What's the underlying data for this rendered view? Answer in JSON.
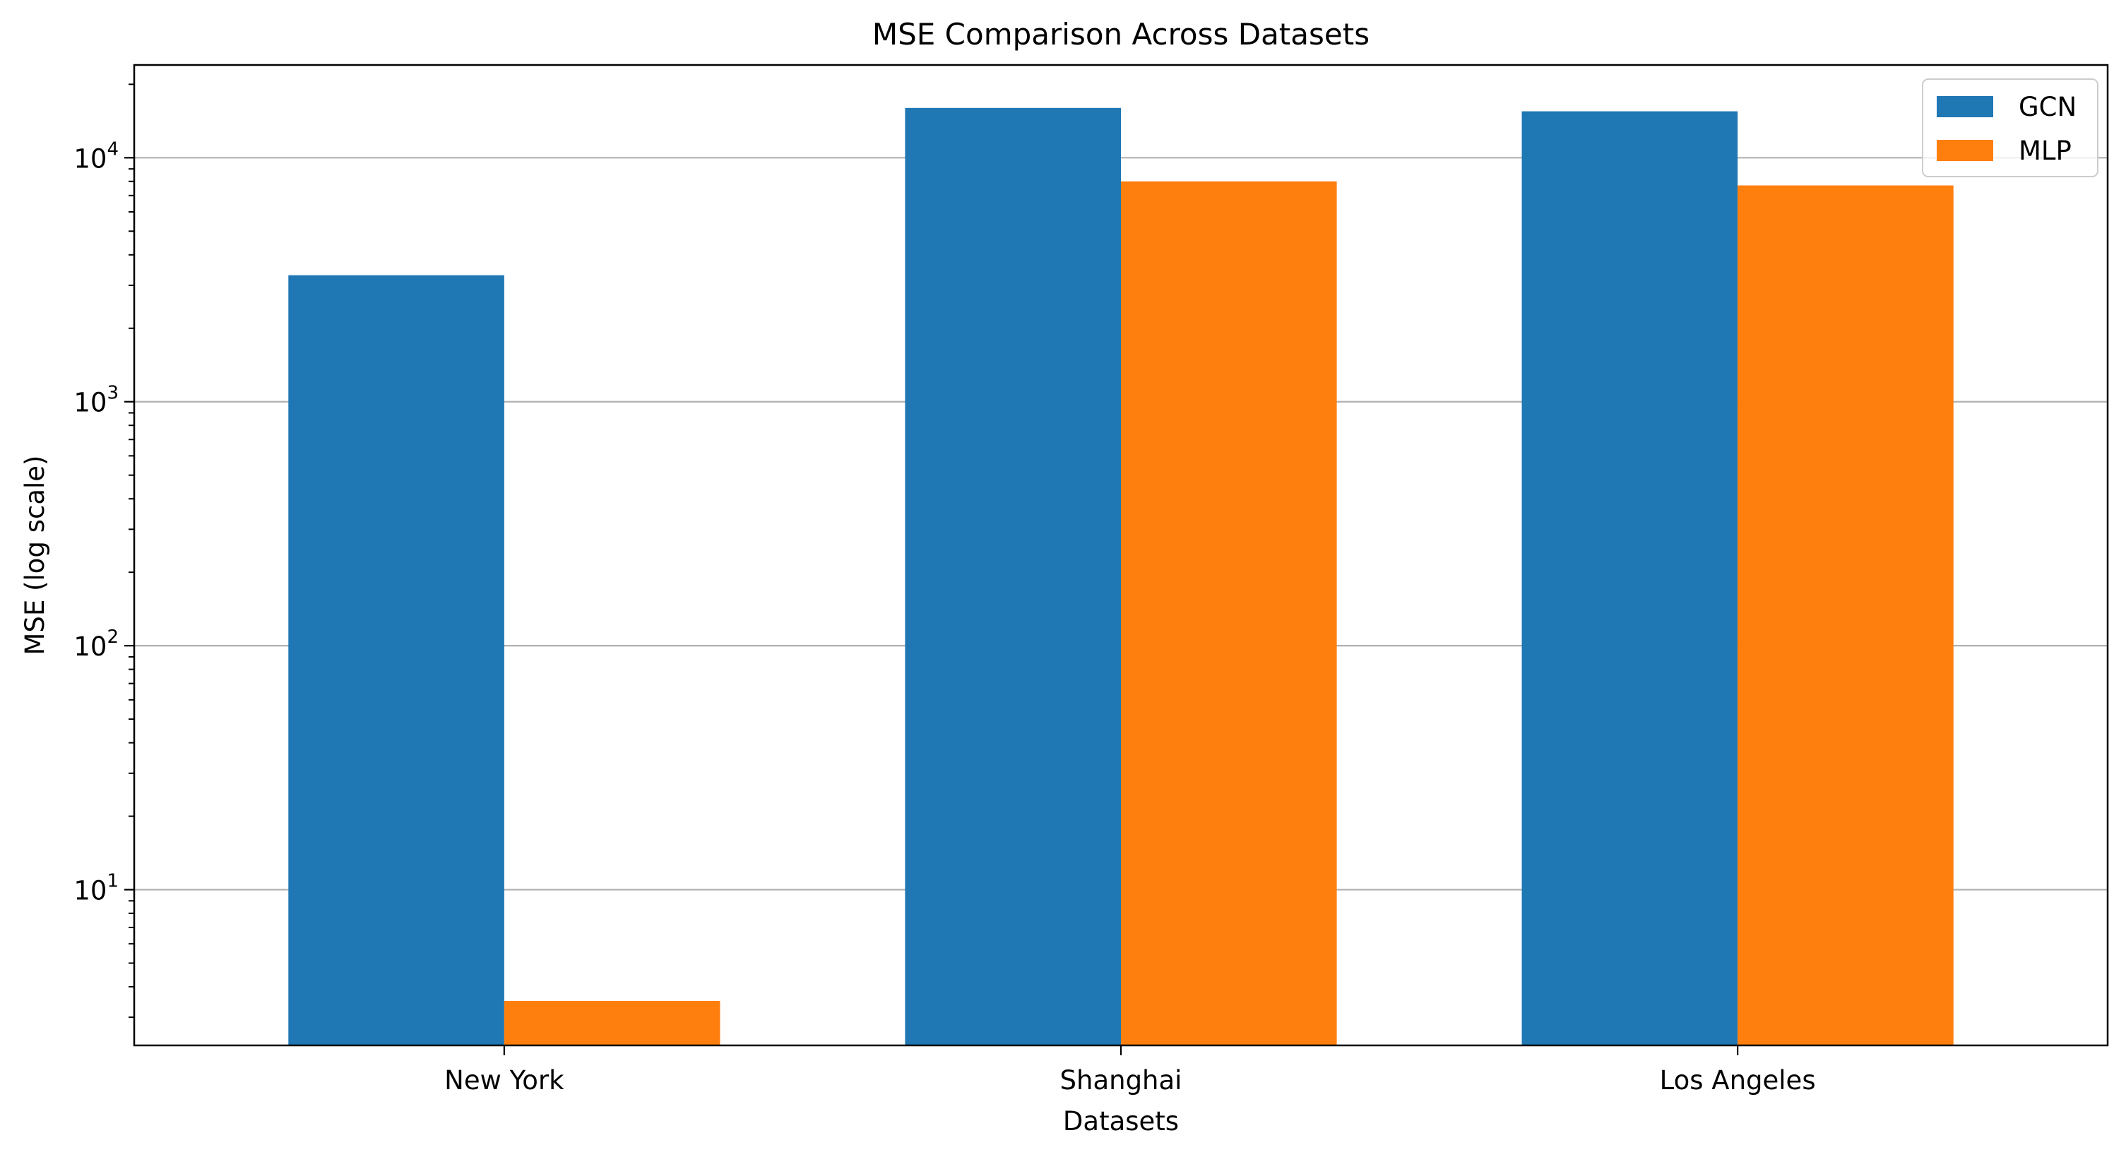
{
  "chart_data": {
    "type": "bar",
    "title": "MSE Comparison Across Datasets",
    "xlabel": "Datasets",
    "ylabel": "MSE (log scale)",
    "yscale": "log",
    "ylim": [
      2.3,
      24000
    ],
    "grid": "y-major",
    "legend": "top-right",
    "categories": [
      "New York",
      "Shanghai",
      "Los Angeles"
    ],
    "yticks": [
      {
        "base": "10",
        "exp": "1",
        "value": 10
      },
      {
        "base": "10",
        "exp": "2",
        "value": 100
      },
      {
        "base": "10",
        "exp": "3",
        "value": 1000
      },
      {
        "base": "10",
        "exp": "4",
        "value": 10000
      }
    ],
    "series": [
      {
        "name": "GCN",
        "color": "#1f77b4",
        "values": [
          3300,
          16000,
          15500
        ]
      },
      {
        "name": "MLP",
        "color": "#ff7f0e",
        "values": [
          3.5,
          8000,
          7700
        ]
      }
    ]
  }
}
